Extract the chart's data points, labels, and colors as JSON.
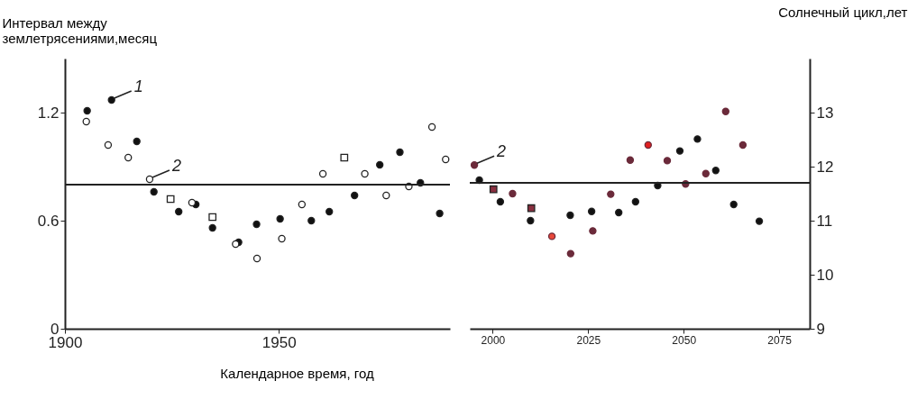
{
  "chart_data": [
    {
      "type": "scatter",
      "xlabel": "Календарное время, год",
      "ylabel": "Интервал между землетрясениями,месяц",
      "xlim": [
        1900,
        1990
      ],
      "xticks": [
        1900,
        1950
      ],
      "ylim": [
        0,
        1.5
      ],
      "yticks": [
        0,
        0.6,
        1.2
      ],
      "series": [
        {
          "color": "#111111",
          "marker": "circle",
          "x": [
            1905.2,
            1910.9,
            1916.8,
            1920.8,
            1926.6,
            1930.6,
            1934.5,
            1940.6,
            1944.8,
            1950.3,
            1957.6,
            1961.8,
            1967.7,
            1973.6,
            1978.3,
            1983.1,
            1987.6
          ],
          "values": [
            1.21,
            1.27,
            1.04,
            0.76,
            0.65,
            0.69,
            0.56,
            0.48,
            0.58,
            0.61,
            0.6,
            0.65,
            0.74,
            0.91,
            0.98,
            0.81,
            0.64
          ]
        },
        {
          "color": "#ffffff",
          "marker": "circle",
          "x": [
            1905.0,
            1910.1,
            1914.8,
            1919.8,
            1929.7,
            1939.9,
            1944.9,
            1950.7,
            1955.4,
            1960.3,
            1970.1,
            1975.1,
            1980.4,
            1985.8,
            1989.0
          ],
          "values": [
            1.15,
            1.02,
            0.95,
            0.83,
            0.7,
            0.47,
            0.39,
            0.5,
            0.69,
            0.86,
            0.86,
            0.74,
            0.79,
            1.12,
            0.94
          ]
        },
        {
          "color": "#ffffff",
          "marker": "square",
          "x": [
            1924.7,
            1934.5,
            1965.3
          ],
          "values": [
            0.72,
            0.62,
            0.95
          ]
        }
      ],
      "ref_lines": [
        {
          "axis": "y",
          "value": 0.8
        }
      ],
      "annotations": [
        {
          "text": "1",
          "x": 1910.9,
          "y": 1.27
        },
        {
          "text": "2",
          "x": 1919.8,
          "y": 0.83
        }
      ]
    },
    {
      "type": "scatter",
      "ylabel": "Солнечный цикл,лет",
      "xlim": [
        1994,
        2083
      ],
      "xticks": [
        2000,
        2025,
        2050,
        2075
      ],
      "ylim": [
        9,
        14
      ],
      "yticks": [
        9,
        10,
        11,
        12,
        13
      ],
      "series": [
        {
          "color": "#111111",
          "marker": "circle",
          "x": [
            1996.5,
            2002.0,
            2005.7,
            2009.9,
            2020.3,
            2025.9,
            2033.0,
            2037.4,
            2043.2,
            2049.0,
            2053.6,
            2058.4,
            2063.1,
            2069.8
          ],
          "values": [
            11.75,
            11.35,
            null,
            11.0,
            11.1,
            11.17,
            11.15,
            11.35,
            11.65,
            12.29,
            12.51,
            11.93,
            11.3,
            10.99
          ]
        },
        {
          "color": "#6b2a3a",
          "marker": "circle",
          "x": [
            1995.2,
            2005.2,
            2015.5,
            2020.4,
            2026.2,
            2030.9,
            2036.0,
            2040.7,
            2045.7,
            2050.5,
            2055.8,
            2061.0,
            2065.5
          ],
          "values": [
            12.03,
            11.5,
            10.71,
            10.39,
            10.81,
            11.49,
            12.12,
            12.4,
            12.11,
            11.68,
            11.87,
            13.02,
            12.4
          ],
          "colors": [
            "#6b2a3a",
            "#6b2a3a",
            "#e8483a",
            "#6b2a3a",
            "#6b2a3a",
            "#6b2a3a",
            "#6b2a3a",
            "#e02020",
            "#6b2a3a",
            "#6b2a3a",
            "#6b2a3a",
            "#6b2a3a",
            "#6b2a3a"
          ]
        },
        {
          "color": "#8a3040",
          "marker": "square",
          "x": [
            2000.2,
            2010.1
          ],
          "values": [
            11.58,
            11.23
          ]
        }
      ],
      "ref_lines": [
        {
          "axis": "y",
          "value": 11.7
        }
      ],
      "annotations": [
        {
          "text": "2",
          "x": 1995.2,
          "y": 12.03
        }
      ]
    }
  ]
}
